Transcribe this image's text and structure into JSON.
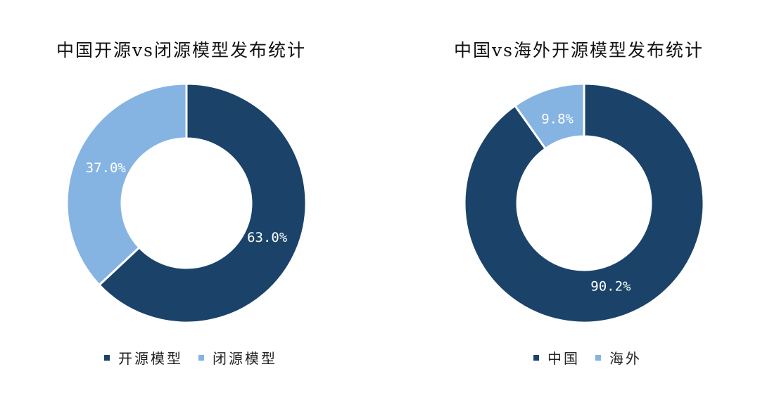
{
  "chart_data": [
    {
      "type": "pie",
      "donut": true,
      "title": "中国开源vs闭源模型发布统计",
      "categories": [
        "开源模型",
        "闭源模型"
      ],
      "values": [
        63.0,
        37.0
      ],
      "labels": [
        "63.0%",
        "37.0%"
      ],
      "colors": [
        "#1b4369",
        "#85b4e3"
      ],
      "legend": "bottom"
    },
    {
      "type": "pie",
      "donut": true,
      "title": "中国vs海外开源模型发布统计",
      "categories": [
        "中国",
        "海外"
      ],
      "values": [
        90.2,
        9.8
      ],
      "labels": [
        "90.2%",
        "9.8%"
      ],
      "colors": [
        "#1b4369",
        "#85b4e3"
      ],
      "legend": "bottom"
    }
  ]
}
